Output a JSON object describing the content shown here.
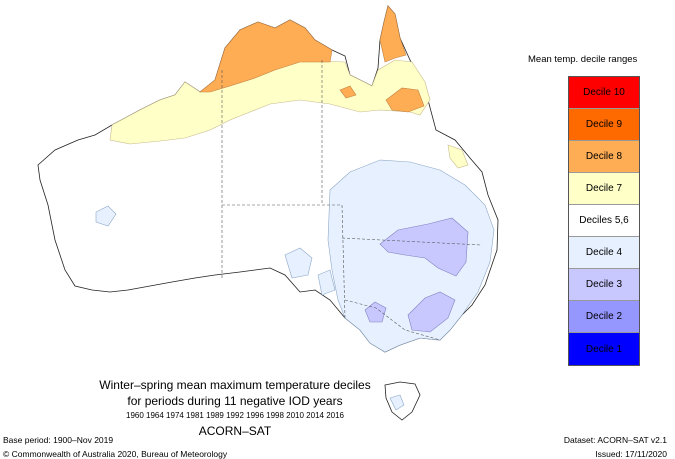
{
  "legend": {
    "title": "Mean temp. decile ranges",
    "items": [
      {
        "label": "Decile 10",
        "color": "#ff0000"
      },
      {
        "label": "Decile 9",
        "color": "#ff6a00"
      },
      {
        "label": "Decile 8",
        "color": "#ffad55"
      },
      {
        "label": "Decile 7",
        "color": "#ffffc8"
      },
      {
        "label": "Deciles 5,6",
        "color": "#ffffff"
      },
      {
        "label": "Decile 4",
        "color": "#e6f0ff"
      },
      {
        "label": "Decile 3",
        "color": "#c8c8ff"
      },
      {
        "label": "Decile 2",
        "color": "#9696ff"
      },
      {
        "label": "Decile 1",
        "color": "#0000ff"
      }
    ]
  },
  "caption": {
    "line1": "Winter–spring mean maximum temperature deciles",
    "line2": "for periods during 11 negative IOD years",
    "years": "1960 1964 1974 1981 1989 1992 1996 1998 2010 2014 2016",
    "dataset_name": "ACORN–SAT"
  },
  "footer": {
    "base_period": "Base period: 1900–Nov 2019",
    "copyright": "© Commonwealth of Australia 2020, Bureau of Meteorology",
    "dataset": "Dataset: ACORN–SAT v2.1",
    "issued": "Issued: 17/11/2020"
  }
}
